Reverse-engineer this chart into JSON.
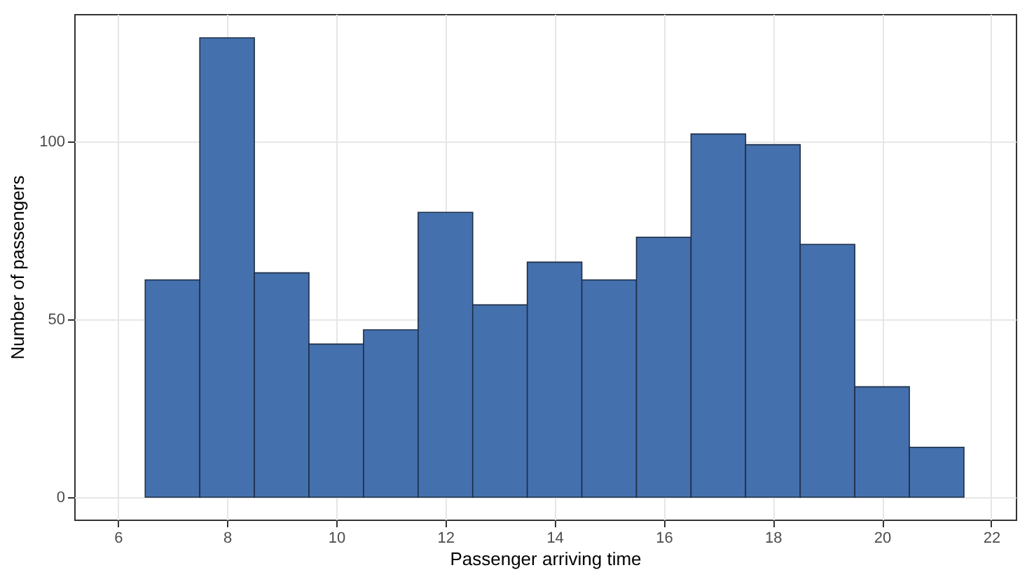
{
  "chart_data": {
    "type": "histogram",
    "xlabel": "Passenger arriving time",
    "ylabel": "Number of passengers",
    "bins": [
      6.5,
      7.5,
      8.5,
      9.5,
      10.5,
      11.5,
      12.5,
      13.5,
      14.5,
      15.5,
      16.5,
      17.5,
      18.5,
      19.5,
      20.5,
      21.5
    ],
    "values": [
      61,
      129,
      63,
      43,
      47,
      80,
      54,
      66,
      61,
      73,
      102,
      99,
      71,
      31,
      14
    ],
    "color": "#4470ad",
    "xlim": [
      5.2,
      22.45
    ],
    "xticks": [
      6,
      8,
      10,
      12,
      14,
      16,
      18,
      20,
      22
    ],
    "ylim": [
      -6.3,
      135.7
    ],
    "yticks": [
      0,
      50,
      100
    ],
    "grid": true
  }
}
